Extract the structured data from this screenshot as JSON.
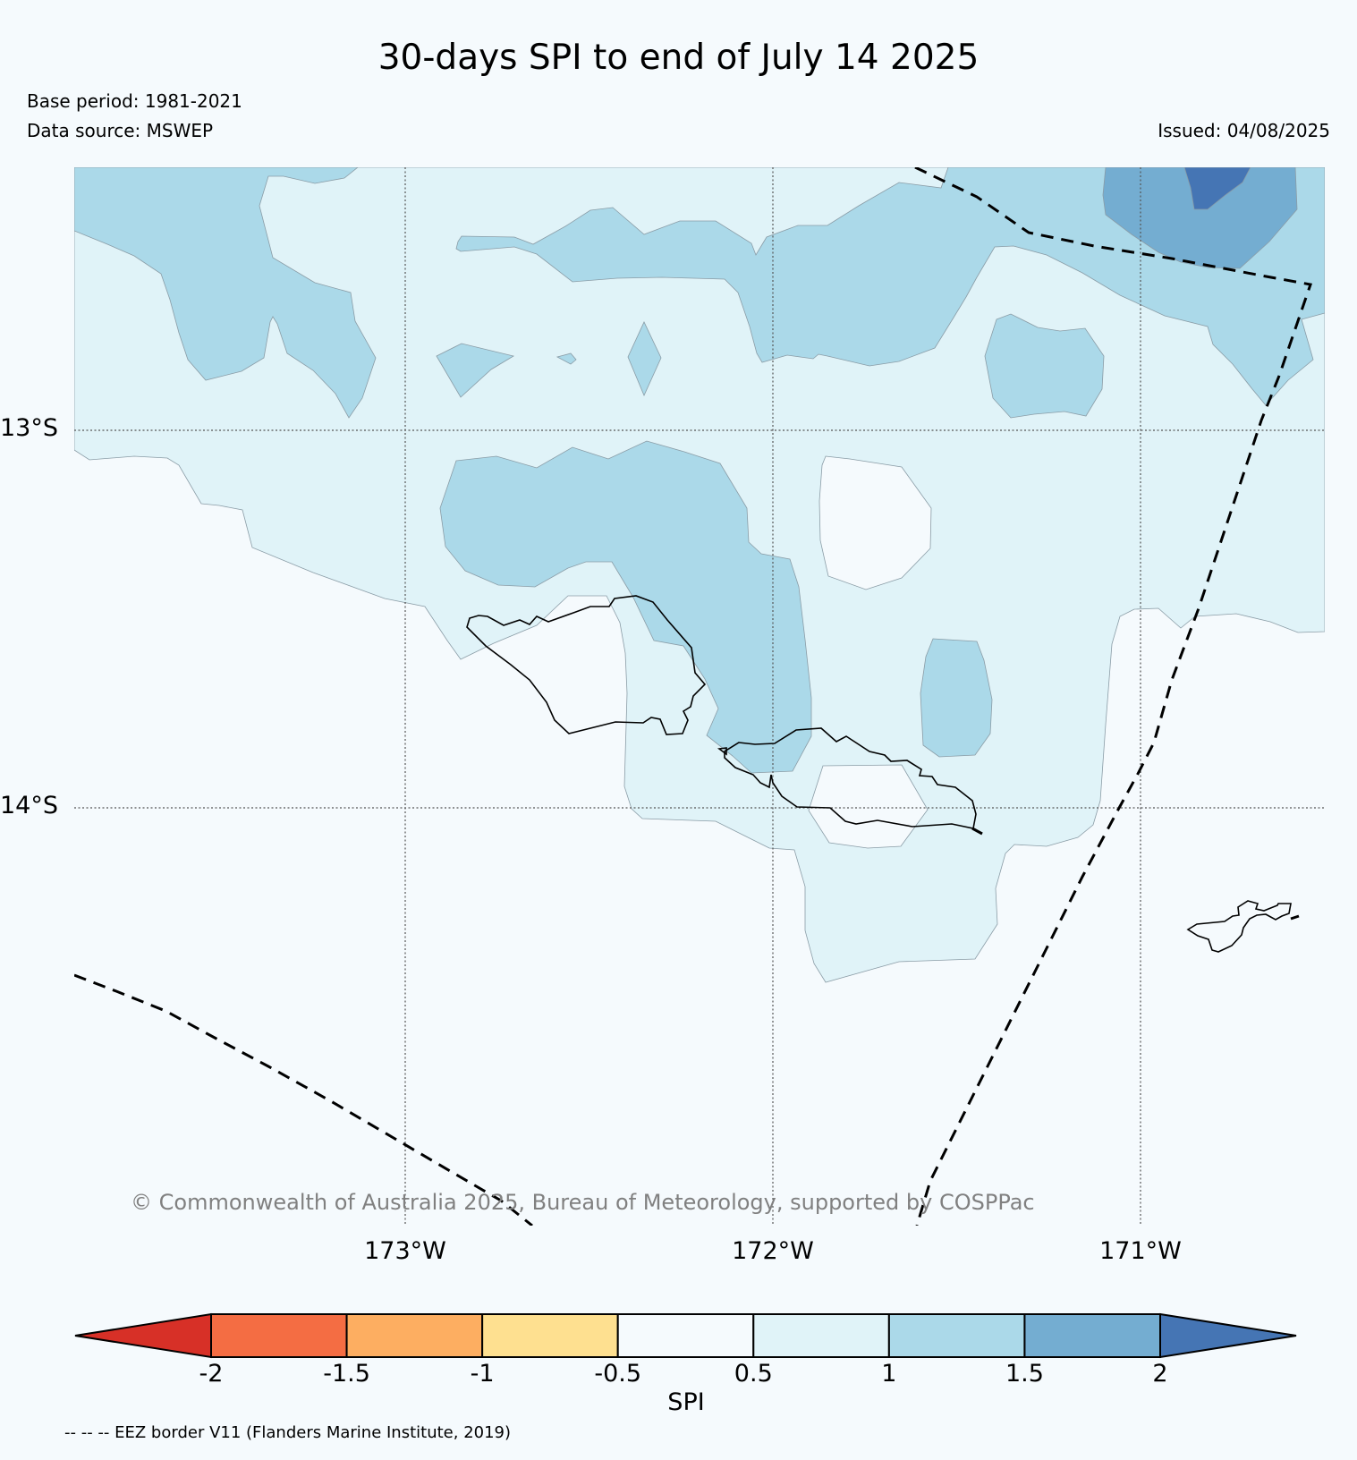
{
  "header": {
    "title": "30-days SPI to end of July 14 2025",
    "base_period": "Base period: 1981-2021",
    "data_source": "Data source: MSWEP",
    "issued": "Issued: 04/08/2025"
  },
  "map": {
    "lat_labels": [
      "13°S",
      "14°S"
    ],
    "lon_labels": [
      "173°W",
      "172°W",
      "171°W"
    ],
    "copyright": "© Commonwealth of Australia 2025, Bureau of Meteorology, supported by COSPPac",
    "fill_colors": {
      "background": "#f5fafd",
      "spi_0_5_to_1": "#e0f3f8",
      "spi_1_to_1_5": "#abd9e9",
      "spi_1_5_to_2": "#74add1",
      "spi_above_2": "#4575b4"
    }
  },
  "colorbar": {
    "label": "SPI",
    "tick_labels": [
      "-2",
      "-1.5",
      "-1",
      "-0.5",
      "0.5",
      "1",
      "1.5",
      "2"
    ],
    "colors": [
      "#d73027",
      "#f46d43",
      "#fdae61",
      "#fee090",
      "#f5fafd",
      "#e0f3f8",
      "#abd9e9",
      "#74add1",
      "#4575b4"
    ]
  },
  "footnote": "-- -- -- EEZ border V11 (Flanders Marine Institute, 2019)"
}
